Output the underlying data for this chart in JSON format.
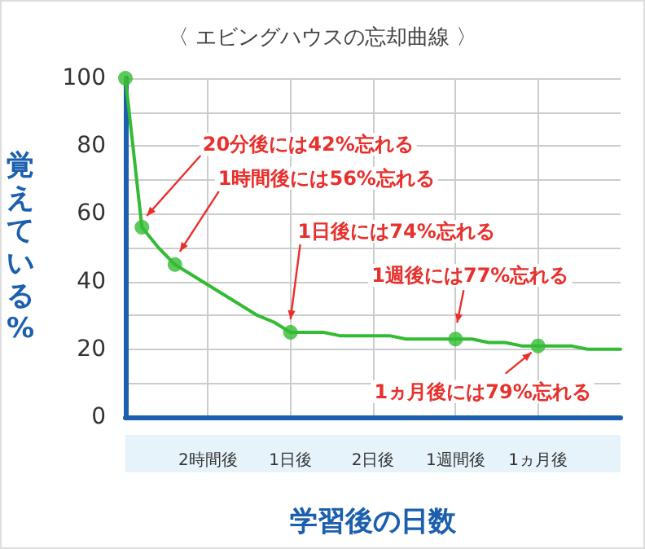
{
  "chart_data": {
    "type": "line",
    "title": "〈 エビングハウスの忘却曲線 〉",
    "xlabel": "学習後の日数",
    "ylabel": "覚えている%",
    "categories": [
      null,
      null,
      null,
      null,
      null,
      "2時間後",
      null,
      null,
      null,
      null,
      "1日後",
      null,
      null,
      null,
      null,
      "2日後",
      null,
      null,
      null,
      null,
      "1週間後",
      null,
      null,
      null,
      null,
      "1ヵ月後",
      null,
      null,
      null,
      null,
      null
    ],
    "series": [
      {
        "color": "#33bb33",
        "marker": "none",
        "values": [
          100,
          56,
          50,
          45,
          42,
          39,
          36,
          33,
          30,
          28,
          25,
          25,
          25,
          24,
          24,
          24,
          24,
          23,
          23,
          23,
          23,
          23,
          22,
          22,
          21,
          21,
          21,
          21,
          20,
          20,
          20
        ]
      },
      {
        "type": "scatter",
        "color": "#33bb33",
        "marker": "circle",
        "values": [
          100,
          56,
          null,
          45,
          null,
          null,
          null,
          null,
          null,
          null,
          25,
          null,
          null,
          null,
          null,
          null,
          null,
          null,
          null,
          null,
          23,
          null,
          null,
          null,
          null,
          21,
          null,
          null,
          null,
          null,
          null
        ]
      }
    ],
    "ylim": [
      0,
      100
    ],
    "yticks": [
      0,
      {
        "value": 10,
        "label": null
      },
      20,
      {
        "value": 30,
        "label": null
      },
      40,
      {
        "value": 50,
        "label": null
      },
      60,
      {
        "value": 70,
        "label": null
      },
      80,
      {
        "value": 90,
        "label": null
      },
      100
    ],
    "grid": true,
    "line_style": "solid",
    "annotations": [
      "20分後には42%忘れる",
      "1時間後には56%忘れる",
      {
        "text": "1日後には74%忘れる",
        "x": "1日後",
        "y": 25
      },
      {
        "text": "1週後には77%忘れる",
        "x": "1週間後",
        "y": 23
      },
      {
        "text": "1ヵ月後には79%忘れる",
        "x": "1ヵ月後",
        "y": 21
      }
    ]
  }
}
